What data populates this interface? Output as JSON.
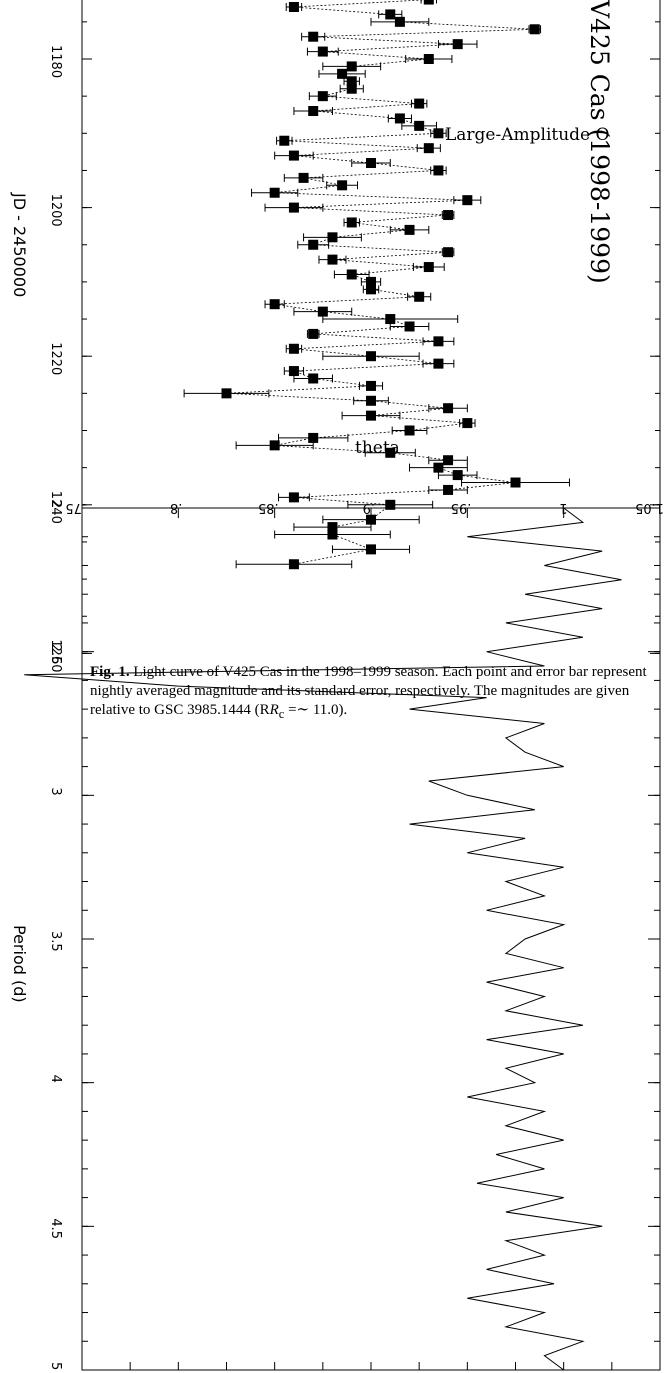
{
  "caption": {
    "label": "Fig. 1.",
    "text": "Light curve of V425 Cas in the 1998–1999 season. Each point and error bar represent nightly averaged magnitude and its standard error, respectively. The magnitudes are given relative to GSC 3985.1444 (R",
    "sub": "c",
    "tail": " =∼ 11.0)."
  },
  "chart_data": [
    {
      "type": "scatter",
      "orientation": "rotated 90° clockwise",
      "title": "V425 Cas (1998-1999)",
      "overlay_text": "Large-Amplitude O",
      "xlabel": "JD - 2450000",
      "xlim": [
        1165,
        1262
      ],
      "x_ticks": [
        "1180",
        "1200",
        "1220",
        "1240",
        "1260"
      ],
      "ylim": [
        0.75,
        1.05
      ],
      "y_ticks": [
        ".75",
        ".8",
        ".85",
        ".9",
        ".95",
        "1",
        "1.05"
      ],
      "series": [
        {
          "x": [
            1165.5,
            1167.5,
            1168.5,
            1169.5,
            1170.5,
            1171.0,
            1172.0,
            1173.0,
            1174.0,
            1175.0,
            1176.0,
            1177.0,
            1178.0,
            1179.0,
            1180.0,
            1181.0,
            1182.0,
            1183.0,
            1184.0,
            1185.0,
            1186.0,
            1187.0,
            1188.0,
            1189.0,
            1190.0,
            1191.0,
            1192.0,
            1193.0,
            1194.0,
            1195.0,
            1196.0,
            1197.0,
            1198.0,
            1199.0,
            1200.0,
            1201.0,
            1202.0,
            1203.0,
            1204.0,
            1205.0,
            1206.0,
            1207.0,
            1208.0,
            1209.0,
            1210.0,
            1211.0,
            1212.0,
            1213.0,
            1214.0,
            1215.0,
            1216.0,
            1217.0,
            1218.0,
            1219.0,
            1220.0,
            1221.0,
            1222.0,
            1223.0,
            1224.0,
            1225.0,
            1226.0,
            1227.0,
            1228.0,
            1229.0,
            1230.0,
            1231.0,
            1232.0,
            1233.0,
            1234.0,
            1235.0,
            1236.0,
            1237.0,
            1238.0,
            1239.0,
            1240.0,
            1242.0,
            1243.0,
            1244.0,
            1246.0,
            1248.0
          ],
          "y": [
            0.95,
            0.93,
            0.87,
            0.87,
            0.925,
            0.875,
            0.93,
            0.86,
            0.91,
            0.915,
            0.985,
            0.87,
            0.945,
            0.875,
            0.93,
            0.89,
            0.885,
            0.89,
            0.89,
            0.875,
            0.925,
            0.87,
            0.915,
            0.925,
            0.935,
            0.855,
            0.93,
            0.86,
            0.9,
            0.935,
            0.865,
            0.885,
            0.85,
            0.95,
            0.86,
            0.94,
            0.89,
            0.92,
            0.88,
            0.87,
            0.94,
            0.88,
            0.93,
            0.89,
            0.9,
            0.9,
            0.925,
            0.85,
            0.875,
            0.91,
            0.92,
            0.87,
            0.935,
            0.86,
            0.9,
            0.935,
            0.86,
            0.87,
            0.9,
            0.825,
            0.9,
            0.94,
            0.9,
            0.95,
            0.92,
            0.87,
            0.85,
            0.91,
            0.94,
            0.935,
            0.945,
            0.975,
            0.94,
            0.86,
            0.91,
            0.9,
            0.88,
            0.88,
            0.9,
            0.86
          ],
          "errors": [
            0.02,
            0.004,
            0.015,
            0.015,
            0.004,
            0.01,
            0.004,
            0.004,
            0.006,
            0.015,
            0.003,
            0.006,
            0.01,
            0.008,
            0.012,
            0.015,
            0.012,
            0.004,
            0.006,
            0.007,
            0.004,
            0.01,
            0.006,
            0.009,
            0.004,
            0.004,
            0.006,
            0.01,
            0.01,
            0.004,
            0.01,
            0.008,
            0.012,
            0.007,
            0.015,
            0.003,
            0.004,
            0.01,
            0.015,
            0.008,
            0.003,
            0.007,
            0.008,
            0.009,
            0.005,
            0.004,
            0.006,
            0.005,
            0.015,
            0.035,
            0.01,
            0.003,
            0.008,
            0.004,
            0.025,
            0.008,
            0.005,
            0.01,
            0.006,
            0.022,
            0.009,
            0.01,
            0.015,
            0.004,
            0.009,
            0.018,
            0.02,
            0.013,
            0.01,
            0.015,
            0.01,
            0.028,
            0.01,
            0.008,
            0.022,
            0.025,
            0.02,
            0.03,
            0.02,
            0.03
          ]
        }
      ]
    },
    {
      "type": "line",
      "orientation": "rotated 90° clockwise",
      "overlay_text": "theta",
      "xlabel": "Period (d)",
      "xlim": [
        2,
        5
      ],
      "x_ticks": [
        "2",
        "2.5",
        "3",
        "3.5",
        "4",
        "4.5",
        "5"
      ],
      "ylim": [
        0.75,
        1.05
      ],
      "series": [
        {
          "name": "theta",
          "x": [
            2.0,
            2.05,
            2.1,
            2.15,
            2.2,
            2.25,
            2.3,
            2.35,
            2.4,
            2.45,
            2.5,
            2.55,
            2.58,
            2.62,
            2.66,
            2.7,
            2.75,
            2.8,
            2.85,
            2.9,
            2.95,
            3.0,
            3.05,
            3.1,
            3.15,
            3.2,
            3.25,
            3.3,
            3.35,
            3.4,
            3.45,
            3.5,
            3.55,
            3.6,
            3.65,
            3.7,
            3.75,
            3.8,
            3.85,
            3.9,
            3.95,
            4.0,
            4.05,
            4.1,
            4.15,
            4.2,
            4.25,
            4.3,
            4.35,
            4.4,
            4.45,
            4.5,
            4.55,
            4.6,
            4.65,
            4.7,
            4.75,
            4.8,
            4.85,
            4.9,
            4.95,
            5.0
          ],
          "y": [
            1.0,
            1.01,
            0.95,
            1.02,
            0.99,
            1.03,
            0.98,
            1.02,
            0.97,
            1.01,
            0.96,
            0.99,
            0.72,
            0.8,
            0.96,
            0.92,
            0.99,
            0.97,
            0.98,
            1.0,
            0.93,
            0.95,
            0.985,
            0.92,
            0.98,
            0.95,
            1.0,
            0.97,
            0.99,
            0.96,
            1.0,
            0.98,
            0.97,
            1.0,
            0.96,
            0.99,
            0.97,
            1.01,
            0.96,
            1.0,
            0.97,
            0.985,
            0.95,
            0.99,
            0.97,
            1.0,
            0.965,
            0.99,
            0.955,
            1.0,
            0.97,
            1.02,
            0.97,
            0.99,
            0.96,
            0.995,
            0.95,
            0.99,
            0.97,
            1.01,
            0.99,
            1.0
          ]
        }
      ]
    }
  ]
}
